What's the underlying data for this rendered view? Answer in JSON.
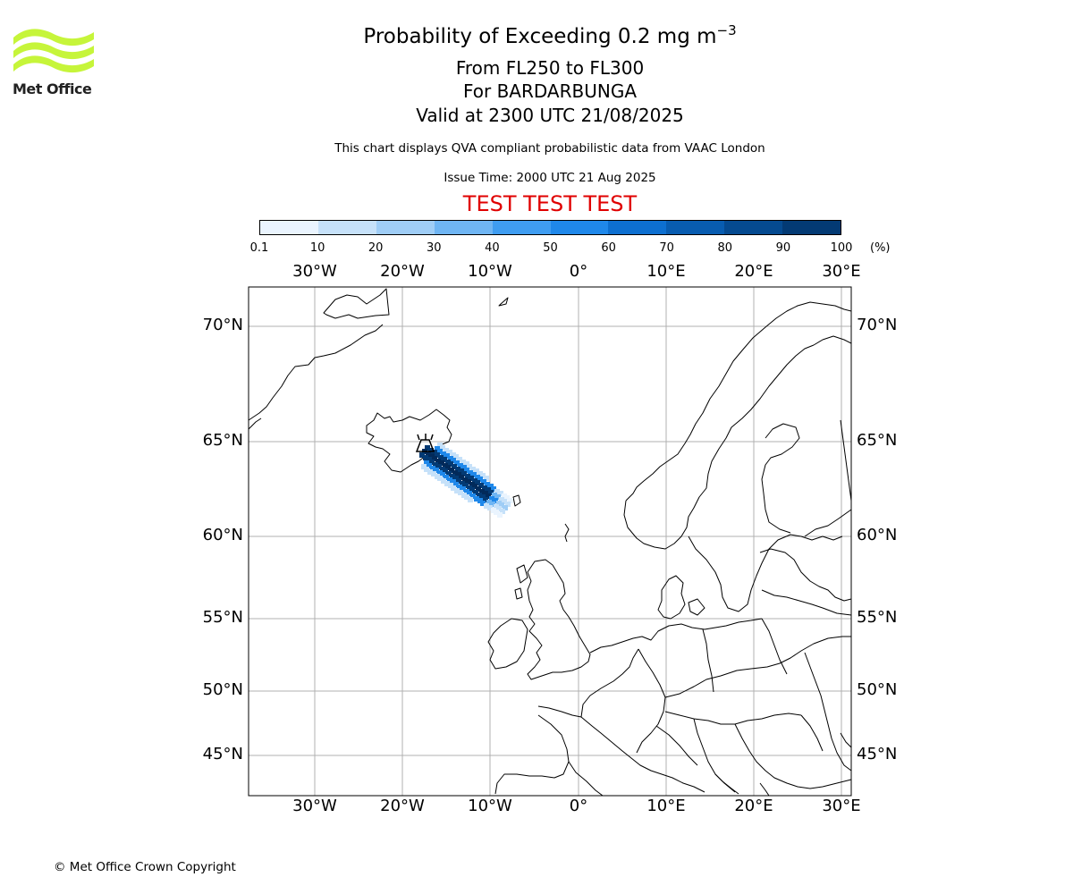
{
  "logo": {
    "text": "Met Office",
    "color": "#c6f53a"
  },
  "header": {
    "title_prefix": "Probability of Exceeding 0.2 mg m",
    "title_exponent": "−3",
    "line2": "From FL250 to FL300",
    "line3": "For BARDARBUNGA",
    "line4": "Valid at 2300 UTC 21/08/2025",
    "note": "This chart displays QVA compliant probabilistic data from VAAC London",
    "issue": "Issue Time: 2000 UTC 21 Aug 2025",
    "test": "TEST TEST TEST"
  },
  "colorbar": {
    "ticks": [
      "0.1",
      "10",
      "20",
      "30",
      "40",
      "50",
      "60",
      "70",
      "80",
      "90",
      "100"
    ],
    "unit": "(%)",
    "colors": [
      "#eaf4fe",
      "#c6e1f9",
      "#9fcdf6",
      "#6fb5f3",
      "#3f9df1",
      "#1f88ea",
      "#0d6fd0",
      "#085cb0",
      "#054a90",
      "#033a74",
      "#022a5a"
    ]
  },
  "map": {
    "lon_labels": [
      "30°W",
      "20°W",
      "10°W",
      "0°",
      "10°E",
      "20°E",
      "30°E"
    ],
    "lat_labels": [
      "70°N",
      "65°N",
      "60°N",
      "55°N",
      "50°N",
      "45°N"
    ],
    "grid_color": "#b0b0b0",
    "volcano": "BARDARBUNGA"
  },
  "footer": {
    "copyright": "© Met Office Crown Copyright"
  }
}
